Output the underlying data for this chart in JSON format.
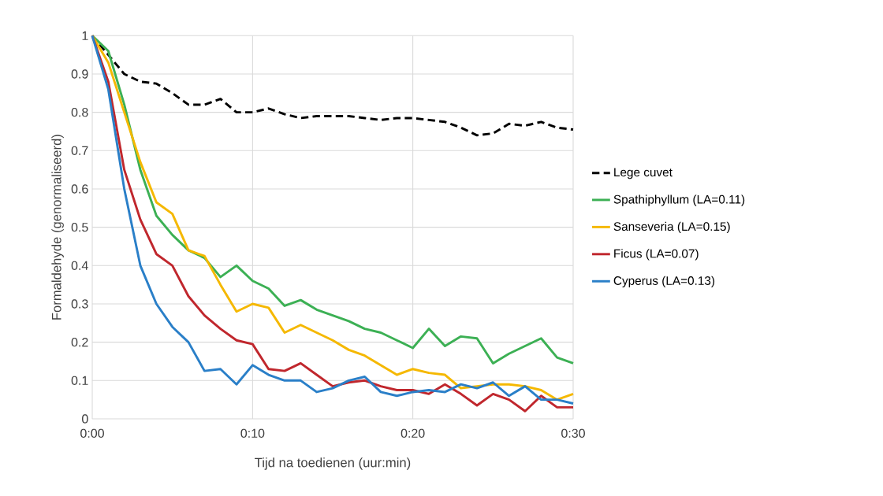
{
  "chart_data": {
    "type": "line",
    "xlabel": "Tijd na toedienen (uur:min)",
    "ylabel": "Formaldehyde (genormaliseerd)",
    "x": [
      0,
      0.0167,
      0.0333,
      0.05,
      0.0667,
      0.0833,
      0.1,
      0.1167,
      0.1333,
      0.15,
      0.1667,
      0.1833,
      0.2,
      0.2167,
      0.2333,
      0.25,
      0.2667,
      0.2833,
      0.3,
      0.3167,
      0.3333,
      0.35,
      0.3667,
      0.3833,
      0.4,
      0.4167,
      0.4333,
      0.45,
      0.4667,
      0.4833,
      0.5
    ],
    "xlim": [
      0,
      0.5
    ],
    "xticks": [
      {
        "value": 0,
        "label": "0:00"
      },
      {
        "value": 0.1667,
        "label": "0:10"
      },
      {
        "value": 0.3333,
        "label": "0:20"
      },
      {
        "value": 0.5,
        "label": "0:30"
      }
    ],
    "ylim": [
      0,
      1
    ],
    "yticks": [
      0,
      0.1,
      0.2,
      0.3,
      0.4,
      0.5,
      0.6,
      0.7,
      0.8,
      0.9,
      1
    ],
    "grid": true,
    "legend": "right",
    "series": [
      {
        "name": "Lege cuvet",
        "color": "#000000",
        "line_style": "dashed",
        "values": [
          1.0,
          0.95,
          0.9,
          0.88,
          0.875,
          0.85,
          0.82,
          0.82,
          0.835,
          0.8,
          0.8,
          0.81,
          0.795,
          0.785,
          0.79,
          0.79,
          0.79,
          0.785,
          0.78,
          0.785,
          0.785,
          0.78,
          0.775,
          0.76,
          0.74,
          0.745,
          0.77,
          0.765,
          0.775,
          0.76,
          0.755
        ]
      },
      {
        "name": "Spathiphyllum (LA=0.11)",
        "color": "#3cb054",
        "line_style": "solid",
        "values": [
          1.0,
          0.96,
          0.82,
          0.65,
          0.53,
          0.48,
          0.44,
          0.42,
          0.37,
          0.4,
          0.36,
          0.34,
          0.295,
          0.31,
          0.285,
          0.27,
          0.255,
          0.235,
          0.225,
          0.205,
          0.185,
          0.235,
          0.19,
          0.215,
          0.21,
          0.145,
          0.17,
          0.19,
          0.21,
          0.16,
          0.145
        ]
      },
      {
        "name": "Sanseveria (LA=0.15)",
        "color": "#f5b800",
        "line_style": "solid",
        "values": [
          1.0,
          0.93,
          0.8,
          0.67,
          0.565,
          0.535,
          0.44,
          0.425,
          0.35,
          0.28,
          0.3,
          0.29,
          0.225,
          0.245,
          0.225,
          0.205,
          0.18,
          0.165,
          0.14,
          0.115,
          0.13,
          0.12,
          0.115,
          0.08,
          0.085,
          0.09,
          0.09,
          0.085,
          0.075,
          0.05,
          0.065
        ]
      },
      {
        "name": "Ficus (LA=0.07)",
        "color": "#c0272d",
        "line_style": "solid",
        "values": [
          1.0,
          0.88,
          0.65,
          0.52,
          0.43,
          0.4,
          0.32,
          0.27,
          0.235,
          0.205,
          0.195,
          0.13,
          0.125,
          0.145,
          0.115,
          0.085,
          0.095,
          0.1,
          0.085,
          0.075,
          0.075,
          0.065,
          0.09,
          0.065,
          0.035,
          0.065,
          0.05,
          0.02,
          0.06,
          0.03,
          0.03
        ]
      },
      {
        "name": "Cyperus (LA=0.13)",
        "color": "#2a7fc8",
        "line_style": "solid",
        "values": [
          1.0,
          0.86,
          0.6,
          0.4,
          0.3,
          0.24,
          0.2,
          0.125,
          0.13,
          0.09,
          0.14,
          0.115,
          0.1,
          0.1,
          0.07,
          0.08,
          0.1,
          0.11,
          0.07,
          0.06,
          0.07,
          0.075,
          0.07,
          0.09,
          0.08,
          0.095,
          0.06,
          0.085,
          0.05,
          0.05,
          0.04
        ]
      }
    ]
  }
}
